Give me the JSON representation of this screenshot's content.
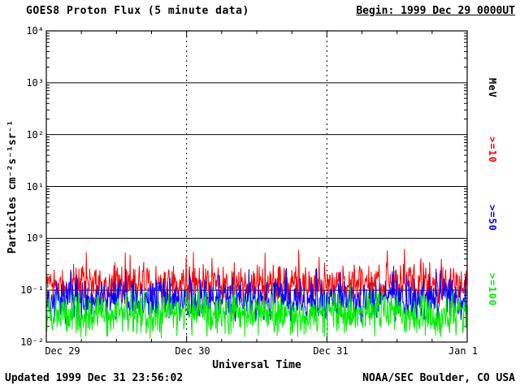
{
  "header": {
    "title": "GOES8 Proton Flux (5 minute data)",
    "begin_label": "Begin: 1999 Dec 29 0000UT"
  },
  "footer": {
    "updated": "Updated 1999 Dec 31 23:56:02",
    "source": "NOAA/SEC Boulder, CO USA"
  },
  "chart_data": {
    "type": "line",
    "title": "GOES8 Proton Flux (5 minute data)",
    "xlabel": "Universal Time",
    "ylabel": "Particles cm⁻²s⁻¹sr⁻¹",
    "right_axis_label": "MeV",
    "y_scale": "log",
    "ylim_exponents": [
      -2,
      4
    ],
    "y_tick_labels": [
      "10⁴",
      "10³",
      "10²",
      "10¹",
      "10⁰",
      "10⁻¹",
      "10⁻²"
    ],
    "x_tick_labels": [
      "Dec 29",
      "Dec 30",
      "Dec 31",
      "Jan 1"
    ],
    "x_days": 3,
    "points_per_day": 288,
    "grid": {
      "horizontal": "solid line per decade",
      "vertical": "dotted line at each day boundary"
    },
    "legend_position": "right-rotated",
    "seed": 19991229,
    "series": [
      {
        "name": ">=10",
        "color": "#ff0000",
        "median_flux": 0.13,
        "log10_spread": 0.26,
        "spike_max": 0.65
      },
      {
        "name": ">=50",
        "color": "#0000ff",
        "median_flux": 0.065,
        "log10_spread": 0.28,
        "spike_max": 0.3
      },
      {
        "name": ">=100",
        "color": "#00ee00",
        "median_flux": 0.035,
        "log10_spread": 0.3,
        "spike_max": 0.13
      }
    ]
  }
}
